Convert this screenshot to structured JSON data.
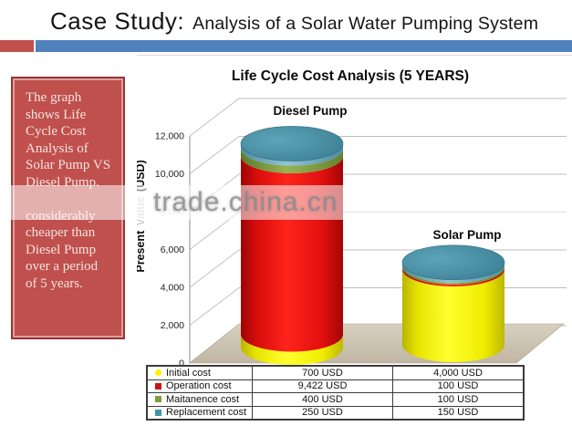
{
  "slide": {
    "title_main": "Case Study:",
    "title_sub": "Analysis of a Solar Water Pumping System"
  },
  "note": {
    "lines": [
      "The graph",
      "shows Life",
      "Cycle Cost",
      "Analysis of",
      "Solar Pump VS",
      "Diesel Pump.",
      "",
      "considerably",
      "cheaper than",
      "Diesel Pump",
      "over a period",
      "of  5 years."
    ]
  },
  "watermark": {
    "text": "trade.china.cn"
  },
  "chart": {
    "title": "Life Cycle Cost Analysis  (5 YEARS)",
    "y_axis_title_parts": [
      "Present",
      "Value",
      "(USD)"
    ],
    "y_ticks": [
      "12,000",
      "10,000",
      "8,000",
      "6,000",
      "4,000",
      "2,000",
      "0"
    ]
  },
  "chart_data": {
    "type": "bar",
    "subtype": "3d-stacked-cylinder",
    "title": "Life Cycle Cost Analysis (5 YEARS)",
    "categories": [
      "Diesel Pump",
      "Solar Pump"
    ],
    "series": [
      {
        "name": "Initial cost",
        "values": [
          700,
          4000
        ],
        "color": "#FFF200"
      },
      {
        "name": "Operation cost",
        "values": [
          9422,
          100
        ],
        "color": "#D92020"
      },
      {
        "name": "Maitanence cost",
        "values": [
          400,
          100
        ],
        "color": "#7F9F3F"
      },
      {
        "name": "Replacement cost",
        "values": [
          250,
          150
        ],
        "color": "#3E95A5"
      }
    ],
    "totals": [
      10772,
      4350
    ],
    "xlabel": "",
    "ylabel": "Present Value (USD)",
    "ylim": [
      0,
      12000
    ],
    "ytick_step": 2000,
    "grid": true,
    "legend_position": "bottom-table"
  },
  "table": {
    "rows": [
      {
        "label": "Initial cost",
        "marker_color": "#FFF200",
        "marker_shape": "circle",
        "diesel": "700  USD",
        "solar": "4,000 USD"
      },
      {
        "label": "Operation cost",
        "marker_color": "#CC1414",
        "marker_shape": "square",
        "diesel": "9,422 USD",
        "solar": "100  USD"
      },
      {
        "label": "Maitanence cost",
        "marker_color": "#7F9F3F",
        "marker_shape": "square",
        "diesel": "400  USD",
        "solar": "100  USD"
      },
      {
        "label": "Replacement cost",
        "marker_color": "#3E95A5",
        "marker_shape": "square",
        "diesel": "250 USD",
        "solar": "150 USD"
      }
    ]
  }
}
